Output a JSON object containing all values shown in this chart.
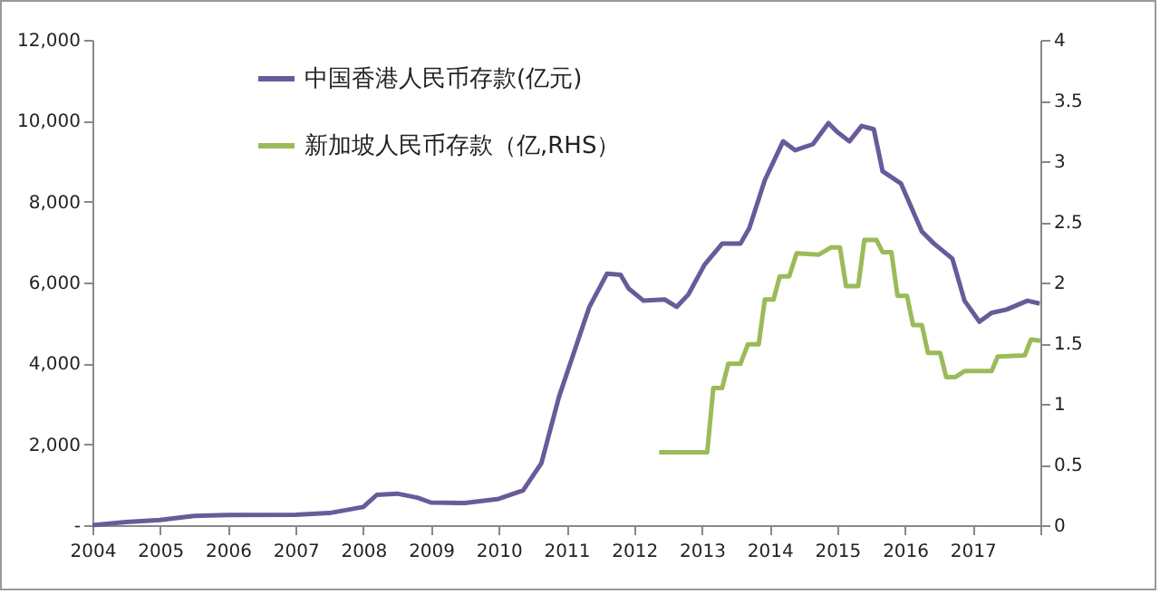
{
  "chart_data": {
    "type": "line",
    "xlim": [
      2004,
      2018
    ],
    "xticks": [
      2004,
      2005,
      2006,
      2007,
      2008,
      2009,
      2010,
      2011,
      2012,
      2013,
      2014,
      2015,
      2016,
      2017,
      {
        "value": 2018,
        "label": null
      }
    ],
    "ylim": [
      0,
      12000
    ],
    "yticks": [
      {
        "value": 0,
        "label": "-"
      },
      {
        "value": 2000,
        "label": "2,000"
      },
      {
        "value": 4000,
        "label": "4,000"
      },
      {
        "value": 6000,
        "label": "6,000"
      },
      {
        "value": 8000,
        "label": "8,000"
      },
      {
        "value": 10000,
        "label": "10,000"
      },
      {
        "value": 12000,
        "label": "12,000"
      }
    ],
    "y2lim": [
      0,
      4
    ],
    "y2ticks": [
      0,
      0.5,
      1,
      1.5,
      2,
      2.5,
      3,
      3.5,
      4
    ],
    "legend": "top left",
    "grid": false,
    "series": [
      {
        "name": "中国香港人民币存款(亿元)",
        "color": "#6a5a9a",
        "x": [
          2004,
          2004.5,
          2005,
          2005.5,
          2006,
          2007,
          2007.5,
          2008,
          2008.2,
          2008.5,
          2008.8,
          2009,
          2009.5,
          2010,
          2010.36,
          2010.63,
          2010.89,
          2011.25,
          2011.34,
          2011.6,
          2011.8,
          2011.92,
          2012.14,
          2012.45,
          2012.63,
          2012.8,
          2013.04,
          2013.3,
          2013.57,
          2013.7,
          2013.93,
          2014.2,
          2014.38,
          2014.64,
          2014.87,
          2015,
          2015.18,
          2015.36,
          2015.54,
          2015.67,
          2015.94,
          2016.25,
          2016.43,
          2016.7,
          2016.88,
          2017.1,
          2017.28,
          2017.5,
          2017.81,
          2017.99
        ],
        "values": [
          0,
          80,
          130,
          230,
          250,
          260,
          300,
          450,
          750,
          780,
          680,
          560,
          550,
          650,
          860,
          1530,
          3170,
          4960,
          5400,
          6220,
          6190,
          5850,
          5550,
          5580,
          5400,
          5700,
          6440,
          6960,
          6960,
          7340,
          8530,
          9490,
          9270,
          9420,
          9940,
          9720,
          9490,
          9870,
          9790,
          8750,
          8450,
          7260,
          6960,
          6590,
          5550,
          5030,
          5250,
          5330,
          5550,
          5480
        ]
      },
      {
        "name": "新加坡人民币存款（亿,RHS）",
        "color": "#9bbb59",
        "axis": "y2",
        "x": [
          2012.37,
          2013.08,
          2013.17,
          2013.3,
          2013.39,
          2013.57,
          2013.68,
          2013.84,
          2013.93,
          2014.06,
          2014.15,
          2014.29,
          2014.4,
          2014.73,
          2014.91,
          2015.04,
          2015.13,
          2015.31,
          2015.4,
          2015.58,
          2015.67,
          2015.8,
          2015.89,
          2016.03,
          2016.12,
          2016.25,
          2016.34,
          2016.52,
          2016.61,
          2016.74,
          2016.88,
          2017.28,
          2017.37,
          2017.77,
          2017.86,
          2018
        ],
        "values": [
          0.6,
          0.6,
          1.13,
          1.13,
          1.33,
          1.33,
          1.49,
          1.49,
          1.86,
          1.86,
          2.05,
          2.05,
          2.24,
          2.23,
          2.29,
          2.29,
          1.97,
          1.97,
          2.35,
          2.35,
          2.25,
          2.25,
          1.89,
          1.89,
          1.65,
          1.65,
          1.42,
          1.42,
          1.22,
          1.22,
          1.27,
          1.27,
          1.39,
          1.4,
          1.53,
          1.52
        ]
      }
    ]
  }
}
